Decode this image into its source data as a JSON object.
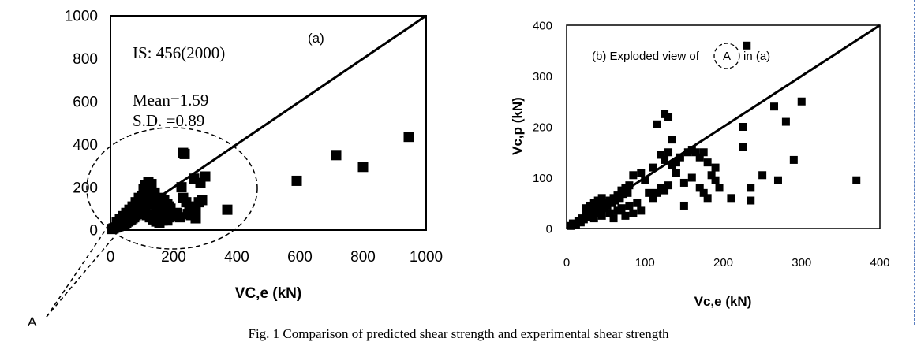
{
  "caption": "Fig. 1 Comparison of predicted shear strength and experimental shear strength",
  "chart_data": [
    {
      "type": "scatter",
      "panel": "a",
      "panel_label": "(a)",
      "title": "IS: 456(2000)",
      "stats": [
        "Mean=1.59",
        "S.D. =0.89"
      ],
      "xlabel": "VC,e (kN)",
      "ylabel": "",
      "xlim": [
        0,
        1000
      ],
      "ylim": [
        0,
        1000
      ],
      "xticks": [
        "0",
        "200",
        "400",
        "600",
        "800",
        "1000"
      ],
      "yticks": [
        "0",
        "200",
        "400",
        "600",
        "800",
        "1000"
      ],
      "reference_line": "y = x",
      "region_label": "A",
      "grid": false,
      "marker_color": "#000000",
      "points": [
        [
          5,
          5
        ],
        [
          10,
          8
        ],
        [
          15,
          12
        ],
        [
          20,
          15
        ],
        [
          25,
          18
        ],
        [
          30,
          22
        ],
        [
          35,
          25
        ],
        [
          40,
          30
        ],
        [
          45,
          28
        ],
        [
          50,
          35
        ],
        [
          55,
          40
        ],
        [
          60,
          45
        ],
        [
          65,
          50
        ],
        [
          70,
          55
        ],
        [
          75,
          60
        ],
        [
          80,
          70
        ],
        [
          85,
          75
        ],
        [
          90,
          80
        ],
        [
          95,
          85
        ],
        [
          100,
          90
        ],
        [
          105,
          100
        ],
        [
          110,
          110
        ],
        [
          115,
          120
        ],
        [
          120,
          130
        ],
        [
          125,
          140
        ],
        [
          130,
          150
        ],
        [
          135,
          160
        ],
        [
          140,
          120
        ],
        [
          145,
          100
        ],
        [
          150,
          90
        ],
        [
          155,
          80
        ],
        [
          160,
          70
        ],
        [
          165,
          60
        ],
        [
          170,
          55
        ],
        [
          175,
          50
        ],
        [
          180,
          45
        ],
        [
          185,
          60
        ],
        [
          190,
          75
        ],
        [
          195,
          65
        ],
        [
          200,
          70
        ],
        [
          110,
          210
        ],
        [
          120,
          225
        ],
        [
          130,
          215
        ],
        [
          105,
          190
        ],
        [
          125,
          195
        ],
        [
          140,
          175
        ],
        [
          100,
          160
        ],
        [
          90,
          150
        ],
        [
          80,
          130
        ],
        [
          70,
          110
        ],
        [
          60,
          95
        ],
        [
          50,
          80
        ],
        [
          40,
          65
        ],
        [
          30,
          50
        ],
        [
          20,
          35
        ],
        [
          115,
          70
        ],
        [
          125,
          60
        ],
        [
          135,
          50
        ],
        [
          145,
          40
        ],
        [
          155,
          35
        ],
        [
          165,
          45
        ],
        [
          175,
          90
        ],
        [
          185,
          110
        ],
        [
          150,
          130
        ],
        [
          160,
          150
        ],
        [
          170,
          140
        ],
        [
          180,
          120
        ],
        [
          190,
          100
        ],
        [
          210,
          80
        ],
        [
          220,
          60
        ],
        [
          230,
          360
        ],
        [
          235,
          355
        ],
        [
          225,
          200
        ],
        [
          230,
          150
        ],
        [
          240,
          130
        ],
        [
          250,
          110
        ],
        [
          260,
          95
        ],
        [
          270,
          100
        ],
        [
          280,
          130
        ],
        [
          290,
          140
        ],
        [
          300,
          250
        ],
        [
          285,
          220
        ],
        [
          265,
          240
        ],
        [
          245,
          75
        ],
        [
          255,
          70
        ],
        [
          270,
          55
        ],
        [
          370,
          95
        ],
        [
          590,
          230
        ],
        [
          715,
          350
        ],
        [
          800,
          295
        ],
        [
          945,
          435
        ]
      ]
    },
    {
      "type": "scatter",
      "panel": "b",
      "panel_label": "(b)  Exploded view of",
      "panel_label_marker": "A",
      "panel_label_suffix": "in (a)",
      "title": "",
      "xlabel": "Vc,e (kN)",
      "ylabel": "Vc,p (kN)",
      "xlim": [
        0,
        400
      ],
      "ylim": [
        0,
        400
      ],
      "xticks": [
        "0",
        "100",
        "200",
        "300",
        "400"
      ],
      "yticks": [
        "0",
        "100",
        "200",
        "300",
        "400"
      ],
      "reference_line": "y = x",
      "grid": false,
      "marker_color": "#000000",
      "points": [
        [
          5,
          5
        ],
        [
          8,
          10
        ],
        [
          12,
          8
        ],
        [
          15,
          15
        ],
        [
          18,
          12
        ],
        [
          20,
          20
        ],
        [
          22,
          18
        ],
        [
          25,
          25
        ],
        [
          28,
          22
        ],
        [
          30,
          30
        ],
        [
          32,
          28
        ],
        [
          35,
          35
        ],
        [
          38,
          30
        ],
        [
          40,
          40
        ],
        [
          42,
          35
        ],
        [
          45,
          45
        ],
        [
          48,
          40
        ],
        [
          50,
          50
        ],
        [
          52,
          45
        ],
        [
          55,
          55
        ],
        [
          58,
          50
        ],
        [
          60,
          60
        ],
        [
          62,
          55
        ],
        [
          65,
          65
        ],
        [
          68,
          60
        ],
        [
          70,
          75
        ],
        [
          72,
          68
        ],
        [
          75,
          80
        ],
        [
          78,
          70
        ],
        [
          80,
          85
        ],
        [
          25,
          40
        ],
        [
          30,
          45
        ],
        [
          35,
          50
        ],
        [
          40,
          55
        ],
        [
          45,
          60
        ],
        [
          35,
          20
        ],
        [
          45,
          25
        ],
        [
          55,
          30
        ],
        [
          65,
          35
        ],
        [
          75,
          25
        ],
        [
          85,
          30
        ],
        [
          95,
          35
        ],
        [
          60,
          20
        ],
        [
          70,
          40
        ],
        [
          80,
          45
        ],
        [
          90,
          50
        ],
        [
          85,
          105
        ],
        [
          95,
          110
        ],
        [
          100,
          95
        ],
        [
          105,
          70
        ],
        [
          110,
          120
        ],
        [
          115,
          205
        ],
        [
          125,
          225
        ],
        [
          130,
          220
        ],
        [
          135,
          175
        ],
        [
          120,
          145
        ],
        [
          125,
          135
        ],
        [
          130,
          150
        ],
        [
          135,
          125
        ],
        [
          140,
          130
        ],
        [
          145,
          140
        ],
        [
          150,
          45
        ],
        [
          155,
          150
        ],
        [
          160,
          155
        ],
        [
          165,
          150
        ],
        [
          170,
          140
        ],
        [
          175,
          150
        ],
        [
          180,
          130
        ],
        [
          185,
          105
        ],
        [
          190,
          95
        ],
        [
          110,
          60
        ],
        [
          115,
          70
        ],
        [
          120,
          80
        ],
        [
          125,
          75
        ],
        [
          130,
          85
        ],
        [
          140,
          110
        ],
        [
          150,
          90
        ],
        [
          160,
          100
        ],
        [
          170,
          80
        ],
        [
          175,
          70
        ],
        [
          180,
          60
        ],
        [
          190,
          120
        ],
        [
          195,
          80
        ],
        [
          210,
          60
        ],
        [
          225,
          200
        ],
        [
          225,
          160
        ],
        [
          230,
          360
        ],
        [
          235,
          80
        ],
        [
          235,
          55
        ],
        [
          250,
          105
        ],
        [
          265,
          240
        ],
        [
          270,
          95
        ],
        [
          280,
          210
        ],
        [
          290,
          135
        ],
        [
          300,
          250
        ],
        [
          370,
          95
        ]
      ]
    }
  ]
}
